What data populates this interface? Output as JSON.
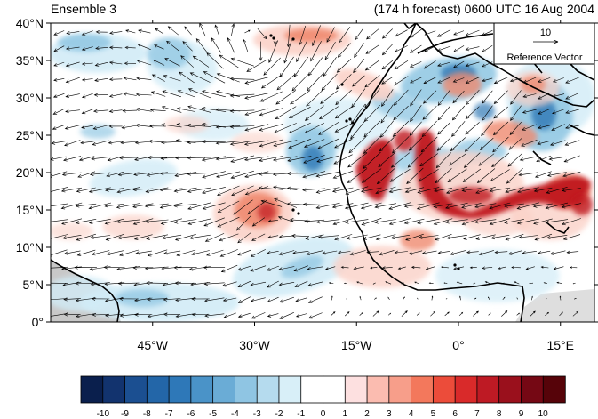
{
  "title_left": "Ensemble 3",
  "title_right": "(174 h forecast) 0600 UTC 16 Aug 2004",
  "reference_vector": {
    "magnitude": "10",
    "label": "Reference Vector"
  },
  "axes": {
    "lat_ticks": [
      "0°",
      "5°N",
      "10°N",
      "15°N",
      "20°N",
      "25°N",
      "30°N",
      "35°N",
      "40°N"
    ],
    "lon_ticks": [
      "45°W",
      "30°W",
      "15°W",
      "0°",
      "15°E"
    ],
    "lat_range": [
      0,
      40
    ],
    "lon_range": [
      -60,
      20
    ]
  },
  "colorbar": {
    "labels": [
      "-10",
      "-9",
      "-8",
      "-7",
      "-6",
      "-5",
      "-4",
      "-3",
      "-2",
      "-1",
      "0",
      "1",
      "2",
      "3",
      "4",
      "5",
      "6",
      "7",
      "8",
      "9",
      "10"
    ],
    "colors": [
      "#0a1f4d",
      "#12336e",
      "#1b4f91",
      "#2366a8",
      "#2e78b8",
      "#4a93c8",
      "#6aacd6",
      "#8fc5e3",
      "#b5dbee",
      "#d8eff8",
      "#ffffff",
      "#ffffff",
      "#fde0e0",
      "#fbbcb0",
      "#f79e8a",
      "#f3785c",
      "#ec4c3a",
      "#d92a2a",
      "#be1a24",
      "#9a101c",
      "#750814",
      "#560309"
    ]
  },
  "map_colors": {
    "blue_light": "#d2ecf7",
    "blue_mid": "#94c9e4",
    "blue_dark": "#2f78b6",
    "red_light": "#fbd2c8",
    "red_mid": "#f08a70",
    "red_dark": "#c0161f",
    "land_mask": "#c8c8c8"
  }
}
